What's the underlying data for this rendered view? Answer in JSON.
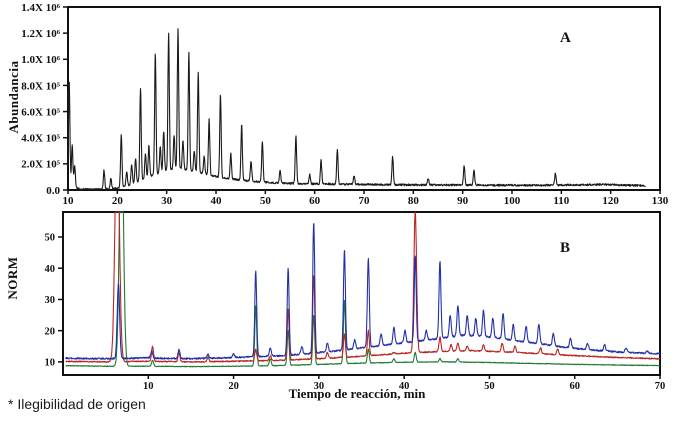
{
  "footnote": "* Ilegibilidad de origen",
  "chart_data": [
    {
      "id": "panel_a",
      "type": "line",
      "panel_label": "A",
      "ylabel": "Abundancia",
      "xlabel": "",
      "xlim": [
        10,
        130
      ],
      "ylim": [
        0,
        1400000
      ],
      "xticks": [
        10,
        20,
        30,
        40,
        50,
        60,
        70,
        80,
        90,
        100,
        110,
        120,
        130
      ],
      "yticks": [
        {
          "value": 0,
          "label": "0.0"
        },
        {
          "value": 200000,
          "label": "2.0X 10⁵"
        },
        {
          "value": 400000,
          "label": "4.0X 10⁵"
        },
        {
          "value": 600000,
          "label": "6.0X 10⁵"
        },
        {
          "value": 800000,
          "label": "8.0X 10⁵"
        },
        {
          "value": 1000000,
          "label": "1.0X 10⁶"
        },
        {
          "value": 1200000,
          "label": "1.2X 10⁶"
        },
        {
          "value": 1400000,
          "label": "1.4X 10⁶"
        }
      ],
      "grid": false,
      "series": [
        {
          "name": "abundancia-tic",
          "color": "#1a1a1a",
          "width": 1.1,
          "noise": 14000,
          "peak_sigma": 0.2,
          "xstart": 10,
          "xend": 127,
          "baseline": [
            [
              10,
              20000
            ],
            [
              10.6,
              30000
            ],
            [
              11.8,
              15000
            ],
            [
              13,
              5000
            ],
            [
              16,
              4000
            ],
            [
              19,
              8000
            ],
            [
              21,
              20000
            ],
            [
              24,
              60000
            ],
            [
              27,
              110000
            ],
            [
              30,
              150000
            ],
            [
              32.5,
              165000
            ],
            [
              35,
              150000
            ],
            [
              38,
              120000
            ],
            [
              41,
              95000
            ],
            [
              44,
              80000
            ],
            [
              48,
              65000
            ],
            [
              52,
              55000
            ],
            [
              58,
              48000
            ],
            [
              65,
              45000
            ],
            [
              75,
              40000
            ],
            [
              90,
              38000
            ],
            [
              105,
              36000
            ],
            [
              118,
              42000
            ],
            [
              127,
              33000
            ]
          ],
          "peaks": [
            [
              10.25,
              820000
            ],
            [
              10.85,
              340000
            ],
            [
              11.35,
              190000
            ],
            [
              17.3,
              150000
            ],
            [
              18.7,
              90000
            ],
            [
              20.8,
              420000
            ],
            [
              21.9,
              140000
            ],
            [
              22.9,
              200000
            ],
            [
              23.7,
              240000
            ],
            [
              24.7,
              780000
            ],
            [
              25.7,
              280000
            ],
            [
              26.4,
              340000
            ],
            [
              27.7,
              1050000
            ],
            [
              28.7,
              330000
            ],
            [
              29.4,
              450000
            ],
            [
              30.4,
              1200000
            ],
            [
              31.5,
              420000
            ],
            [
              32.3,
              1230000
            ],
            [
              33.3,
              380000
            ],
            [
              34.5,
              1060000
            ],
            [
              35.6,
              300000
            ],
            [
              36.4,
              900000
            ],
            [
              37.6,
              260000
            ],
            [
              38.6,
              540000
            ],
            [
              40.9,
              740000
            ],
            [
              43,
              280000
            ],
            [
              45.2,
              500000
            ],
            [
              47.1,
              220000
            ],
            [
              49.4,
              370000
            ],
            [
              53,
              150000
            ],
            [
              56.2,
              420000
            ],
            [
              59,
              120000
            ],
            [
              61.3,
              230000
            ],
            [
              64.6,
              310000
            ],
            [
              68,
              110000
            ],
            [
              75.8,
              260000
            ],
            [
              83,
              90000
            ],
            [
              90.3,
              190000
            ],
            [
              92.3,
              150000
            ],
            [
              108.8,
              130000
            ]
          ]
        }
      ]
    },
    {
      "id": "panel_b",
      "type": "line",
      "panel_label": "B",
      "ylabel": "NORM",
      "xlabel": "Tiempo de reacción, min",
      "xlim": [
        0,
        70
      ],
      "ylim": [
        5.8,
        58
      ],
      "xticks": [
        10,
        20,
        30,
        40,
        50,
        60,
        70
      ],
      "yticks": [
        {
          "value": 10,
          "label": "10"
        },
        {
          "value": 20,
          "label": "20"
        },
        {
          "value": 30,
          "label": "30"
        },
        {
          "value": 40,
          "label": "40"
        },
        {
          "value": 50,
          "label": "50"
        }
      ],
      "grid": false,
      "series": [
        {
          "name": "trace-green",
          "color": "#1d7a33",
          "width": 1.1,
          "noise": 0.2,
          "peak_sigma": 0.16,
          "xstart": 0.3,
          "xend": 70,
          "baseline": [
            [
              0,
              8.8
            ],
            [
              5,
              8.6
            ],
            [
              10,
              8.6
            ],
            [
              15,
              8.5
            ],
            [
              20,
              8.6
            ],
            [
              25,
              8.8
            ],
            [
              30,
              9.2
            ],
            [
              35,
              9.6
            ],
            [
              40,
              9.9
            ],
            [
              45,
              10
            ],
            [
              50,
              9.8
            ],
            [
              55,
              9.5
            ],
            [
              60,
              9.2
            ],
            [
              65,
              9
            ],
            [
              70,
              8.8
            ]
          ],
          "peaks": [
            [
              6.85,
              90,
              0.33
            ],
            [
              10.5,
              10.5
            ],
            [
              22.6,
              28
            ],
            [
              24.3,
              11
            ],
            [
              26.4,
              20
            ],
            [
              29.4,
              25
            ],
            [
              33,
              30
            ],
            [
              35.8,
              14
            ],
            [
              38.8,
              11
            ],
            [
              41.3,
              13
            ],
            [
              44.2,
              11
            ],
            [
              46.3,
              11
            ]
          ]
        },
        {
          "name": "trace-red",
          "color": "#bb2420",
          "width": 1.1,
          "noise": 0.35,
          "peak_sigma": 0.16,
          "xstart": 0.3,
          "xend": 70,
          "baseline": [
            [
              0,
              10.2
            ],
            [
              5,
              10
            ],
            [
              10,
              10.2
            ],
            [
              15,
              10
            ],
            [
              20,
              10.2
            ],
            [
              25,
              10.5
            ],
            [
              30,
              11
            ],
            [
              35,
              11.8
            ],
            [
              40,
              12.8
            ],
            [
              44,
              13.3
            ],
            [
              48,
              13.6
            ],
            [
              52,
              13.2
            ],
            [
              56,
              12.6
            ],
            [
              60,
              12
            ],
            [
              65,
              11.4
            ],
            [
              70,
              11
            ]
          ],
          "peaks": [
            [
              6.35,
              90,
              0.35
            ],
            [
              10.5,
              15
            ],
            [
              13.6,
              13
            ],
            [
              17,
              11.5
            ],
            [
              22.6,
              14
            ],
            [
              24.3,
              12
            ],
            [
              26.4,
              27
            ],
            [
              29.4,
              38
            ],
            [
              31,
              13
            ],
            [
              33,
              19
            ],
            [
              35.8,
              20
            ],
            [
              38.8,
              13
            ],
            [
              41.3,
              58.5,
              0.22
            ],
            [
              44.2,
              18
            ],
            [
              45.5,
              15.5
            ],
            [
              46.3,
              16
            ],
            [
              47.4,
              15
            ],
            [
              49.3,
              15.5
            ],
            [
              51.5,
              16
            ],
            [
              53,
              15
            ],
            [
              56,
              14.5
            ],
            [
              58,
              14
            ]
          ]
        },
        {
          "name": "trace-blue",
          "color": "#2330a8",
          "width": 1.1,
          "noise": 0.5,
          "peak_sigma": 0.16,
          "xstart": 0.3,
          "xend": 70,
          "baseline": [
            [
              0,
              11.2
            ],
            [
              5,
              11
            ],
            [
              10,
              11.3
            ],
            [
              14,
              11
            ],
            [
              18,
              11.2
            ],
            [
              22,
              11.6
            ],
            [
              26,
              12
            ],
            [
              30,
              13
            ],
            [
              33,
              13.8
            ],
            [
              36,
              14.8
            ],
            [
              39,
              15.8
            ],
            [
              42,
              16.8
            ],
            [
              45,
              17.8
            ],
            [
              47,
              18.6
            ],
            [
              49,
              18.2
            ],
            [
              51,
              17.6
            ],
            [
              53,
              16.8
            ],
            [
              56,
              15.8
            ],
            [
              59,
              14.6
            ],
            [
              62,
              13.8
            ],
            [
              65,
              13.2
            ],
            [
              68,
              12.8
            ],
            [
              70,
              12.6
            ]
          ],
          "peaks": [
            [
              6.5,
              35,
              0.2
            ],
            [
              10.4,
              13.5
            ],
            [
              13.6,
              14
            ],
            [
              17,
              12.5
            ],
            [
              20,
              12.5
            ],
            [
              22.6,
              39
            ],
            [
              24.3,
              14.5
            ],
            [
              26.4,
              40
            ],
            [
              28,
              15
            ],
            [
              29.4,
              55
            ],
            [
              31,
              16
            ],
            [
              33,
              46
            ],
            [
              34.2,
              17
            ],
            [
              35.8,
              43
            ],
            [
              37.3,
              19
            ],
            [
              38.8,
              21
            ],
            [
              40.1,
              20
            ],
            [
              41.3,
              44
            ],
            [
              42.6,
              20
            ],
            [
              44.2,
              42
            ],
            [
              45.4,
              25
            ],
            [
              46.3,
              28
            ],
            [
              47.4,
              25
            ],
            [
              48.4,
              24
            ],
            [
              49.3,
              26.5
            ],
            [
              50.4,
              24
            ],
            [
              51.6,
              25.5
            ],
            [
              52.8,
              22
            ],
            [
              54.3,
              21.5
            ],
            [
              55.8,
              22
            ],
            [
              57.5,
              19
            ],
            [
              59.5,
              17.5
            ],
            [
              61.5,
              16
            ],
            [
              63.5,
              15.5
            ],
            [
              66,
              14.5
            ],
            [
              68.5,
              13.5
            ]
          ]
        }
      ]
    }
  ]
}
